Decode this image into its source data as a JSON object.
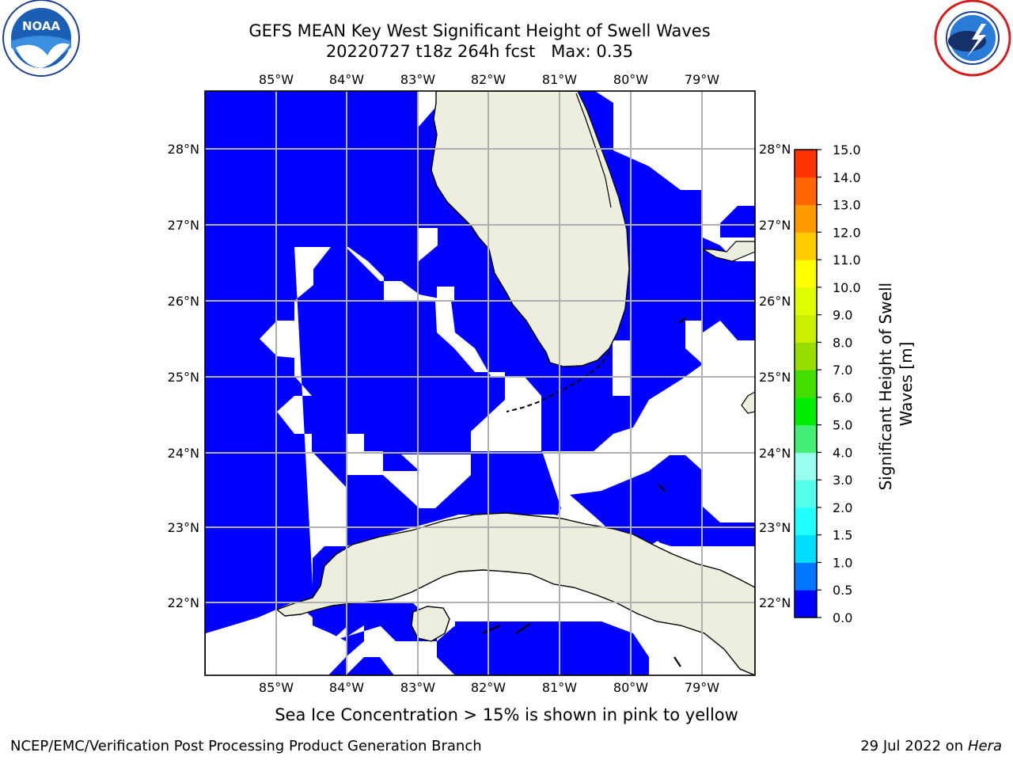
{
  "title": {
    "line1": "GEFS MEAN Key West Significant Height of Swell Waves",
    "line2": "20220727 t18z 264h fcst   Max: 0.35"
  },
  "map": {
    "lon_labels": [
      "85°W",
      "84°W",
      "83°W",
      "82°W",
      "81°W",
      "80°W",
      "79°W"
    ],
    "lat_labels": [
      "28°N",
      "27°N",
      "26°N",
      "25°N",
      "24°N",
      "23°N",
      "22°N"
    ],
    "colors": {
      "ocean_fill": "#0000ff",
      "land": "#eeeede",
      "gridline": "#b0b0b0",
      "no_data": "#ffffff"
    }
  },
  "colorbar": {
    "label": "Significant Height of Swell Waves [m]",
    "tick_labels": [
      "0.0",
      "0.5",
      "1.0",
      "1.5",
      "2.0",
      "3.0",
      "4.0",
      "5.0",
      "6.0",
      "7.0",
      "8.0",
      "9.0",
      "10.0",
      "11.0",
      "12.0",
      "13.0",
      "14.0",
      "15.0"
    ],
    "colors": [
      "#0000ff",
      "#0077ff",
      "#00ddff",
      "#22ffff",
      "#55ffee",
      "#99ffee",
      "#44ee77",
      "#00ee00",
      "#44dd00",
      "#99dd00",
      "#ccee00",
      "#ddff00",
      "#ffff00",
      "#ffcc00",
      "#ff9900",
      "#ff6600",
      "#ff3300",
      "#ff0000"
    ]
  },
  "logos": {
    "noaa": {
      "text": "NOAA",
      "ring_text": "NATIONAL OCEANIC AND ATMOSPHERIC ADMINISTRATION"
    },
    "nws": {
      "ring_text": "NATIONAL WEATHER SERVICE"
    }
  },
  "caption": "Sea Ice Concentration > 15% is shown in pink to yellow",
  "footer": {
    "left": "NCEP/EMC/Verification Post Processing Product Generation Branch",
    "right_prefix": "29 Jul 2022 on ",
    "right_machine": "Hera"
  }
}
